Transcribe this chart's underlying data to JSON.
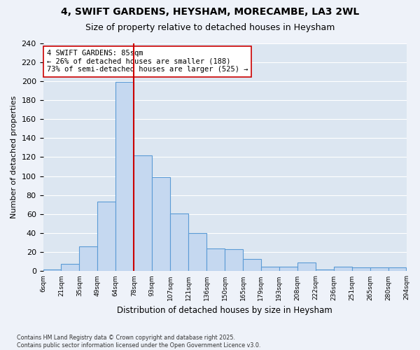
{
  "title_line1": "4, SWIFT GARDENS, HEYSHAM, MORECAMBE, LA3 2WL",
  "title_line2": "Size of property relative to detached houses in Heysham",
  "xlabel": "Distribution of detached houses by size in Heysham",
  "ylabel": "Number of detached properties",
  "footnote": "Contains HM Land Registry data © Crown copyright and database right 2025.\nContains public sector information licensed under the Open Government Licence v3.0.",
  "bins": [
    "6sqm",
    "21sqm",
    "35sqm",
    "49sqm",
    "64sqm",
    "78sqm",
    "93sqm",
    "107sqm",
    "121sqm",
    "136sqm",
    "150sqm",
    "165sqm",
    "179sqm",
    "193sqm",
    "208sqm",
    "222sqm",
    "236sqm",
    "251sqm",
    "265sqm",
    "280sqm",
    "294sqm"
  ],
  "values": [
    2,
    8,
    26,
    73,
    199,
    122,
    99,
    61,
    40,
    24,
    23,
    13,
    5,
    5,
    9,
    2,
    5,
    4,
    4,
    4
  ],
  "bar_color": "#c5d8f0",
  "bar_edge_color": "#5b9bd5",
  "vline_x": 4.5,
  "vline_color": "#cc0000",
  "annotation_text": "4 SWIFT GARDENS: 85sqm\n← 26% of detached houses are smaller (188)\n73% of semi-detached houses are larger (525) →",
  "annotation_box_color": "#ffffff",
  "annotation_box_edge": "#cc0000",
  "ylim": [
    0,
    240
  ],
  "yticks": [
    0,
    20,
    40,
    60,
    80,
    100,
    120,
    140,
    160,
    180,
    200,
    220,
    240
  ],
  "fig_bg_color": "#eef2f9",
  "plot_bg_color": "#dce6f1"
}
